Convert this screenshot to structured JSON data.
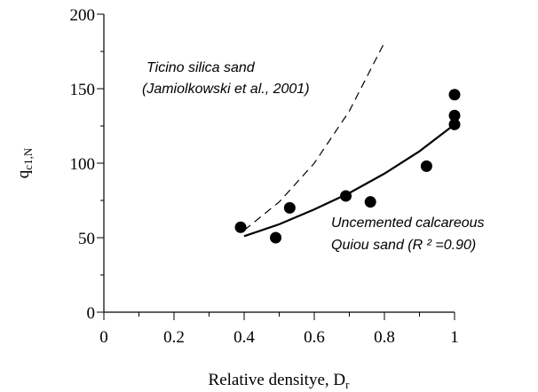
{
  "chart_data": {
    "type": "scatter",
    "xlabel": "Relative densitye, D",
    "xlabel_sub": "r",
    "ylabel": "q",
    "ylabel_sub": "c1,N",
    "xlim": [
      0,
      1
    ],
    "ylim": [
      0,
      200
    ],
    "xticks": [
      0,
      0.2,
      0.4,
      0.6,
      0.8,
      1
    ],
    "yticks": [
      0,
      50,
      100,
      150,
      200
    ],
    "xminorticks": [
      0.1,
      0.3,
      0.5,
      0.7,
      0.9
    ],
    "yminorticks": [
      25,
      75,
      125,
      175
    ],
    "series": [
      {
        "type": "scatter",
        "color": "#000000",
        "x": [
          0.39,
          0.49,
          0.53,
          0.69,
          0.76,
          0.92,
          1.0,
          1.0,
          1.0
        ],
        "values": [
          57,
          50,
          70,
          78,
          74,
          98,
          146,
          132,
          126
        ]
      },
      {
        "type": "line",
        "style": "solid",
        "color": "#000000",
        "x": [
          0.4,
          0.5,
          0.6,
          0.7,
          0.8,
          0.9,
          1.0
        ],
        "values": [
          51,
          59,
          69,
          80,
          93,
          108,
          126
        ]
      },
      {
        "type": "line",
        "style": "dashed",
        "color": "#000000",
        "x": [
          0.4,
          0.5,
          0.6,
          0.7,
          0.8
        ],
        "values": [
          55,
          74,
          100,
          135,
          181
        ]
      }
    ],
    "annotations": [
      "Ticino silica sand",
      "(Jamiolkowski et al., 2001)",
      "Uncemented calcareous",
      "Quiou sand (R ² =0.90)"
    ]
  }
}
